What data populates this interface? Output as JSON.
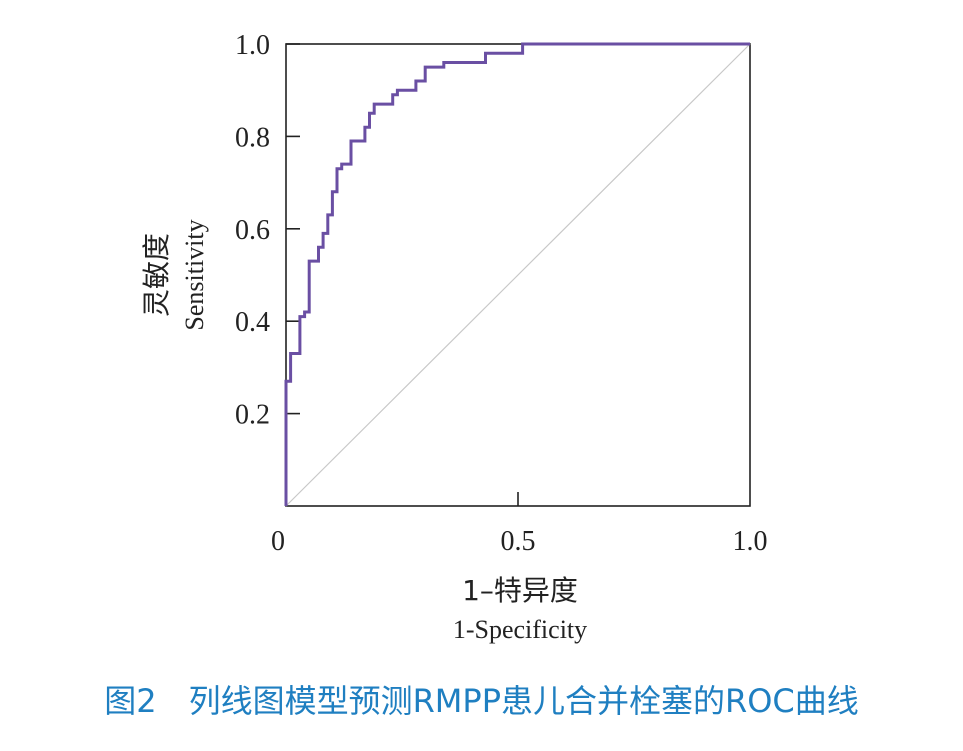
{
  "caption": "图2　列线图模型预测RMPP患儿合并栓塞的ROC曲线",
  "chart_data": {
    "type": "line",
    "xlabel": "1–特异度",
    "xlabel_en": "1-Specificity",
    "ylabel": "灵敏度",
    "ylabel_en": "Sensitivity",
    "xlim": [
      0,
      1.0
    ],
    "ylim": [
      0,
      1.0
    ],
    "x_ticks": [
      {
        "value": 0,
        "label": "0"
      },
      {
        "value": 0.5,
        "label": "0.5"
      },
      {
        "value": 1.0,
        "label": "1.0"
      }
    ],
    "y_ticks": [
      {
        "value": 0.2,
        "label": "0.2"
      },
      {
        "value": 0.4,
        "label": "0.4"
      },
      {
        "value": 0.6,
        "label": "0.6"
      },
      {
        "value": 0.8,
        "label": "0.8"
      },
      {
        "value": 1.0,
        "label": "1.0"
      }
    ],
    "grid": false,
    "curve_color": "#6a4fa3",
    "reference_color": "#c8c8c8",
    "reference_line": [
      [
        0,
        0
      ],
      [
        1,
        1
      ]
    ],
    "roc_points": [
      [
        0,
        0
      ],
      [
        0,
        0.27
      ],
      [
        0.01,
        0.27
      ],
      [
        0.01,
        0.33
      ],
      [
        0.03,
        0.33
      ],
      [
        0.03,
        0.41
      ],
      [
        0.04,
        0.41
      ],
      [
        0.04,
        0.42
      ],
      [
        0.05,
        0.42
      ],
      [
        0.05,
        0.53
      ],
      [
        0.07,
        0.53
      ],
      [
        0.07,
        0.56
      ],
      [
        0.08,
        0.56
      ],
      [
        0.08,
        0.59
      ],
      [
        0.09,
        0.59
      ],
      [
        0.09,
        0.63
      ],
      [
        0.1,
        0.63
      ],
      [
        0.1,
        0.68
      ],
      [
        0.11,
        0.68
      ],
      [
        0.11,
        0.73
      ],
      [
        0.12,
        0.73
      ],
      [
        0.12,
        0.74
      ],
      [
        0.14,
        0.74
      ],
      [
        0.14,
        0.79
      ],
      [
        0.17,
        0.79
      ],
      [
        0.17,
        0.82
      ],
      [
        0.18,
        0.82
      ],
      [
        0.18,
        0.85
      ],
      [
        0.19,
        0.85
      ],
      [
        0.19,
        0.87
      ],
      [
        0.23,
        0.87
      ],
      [
        0.23,
        0.89
      ],
      [
        0.24,
        0.89
      ],
      [
        0.24,
        0.9
      ],
      [
        0.28,
        0.9
      ],
      [
        0.28,
        0.92
      ],
      [
        0.3,
        0.92
      ],
      [
        0.3,
        0.95
      ],
      [
        0.34,
        0.95
      ],
      [
        0.34,
        0.96
      ],
      [
        0.43,
        0.96
      ],
      [
        0.43,
        0.98
      ],
      [
        0.51,
        0.98
      ],
      [
        0.51,
        1.0
      ],
      [
        1.0,
        1.0
      ]
    ]
  }
}
